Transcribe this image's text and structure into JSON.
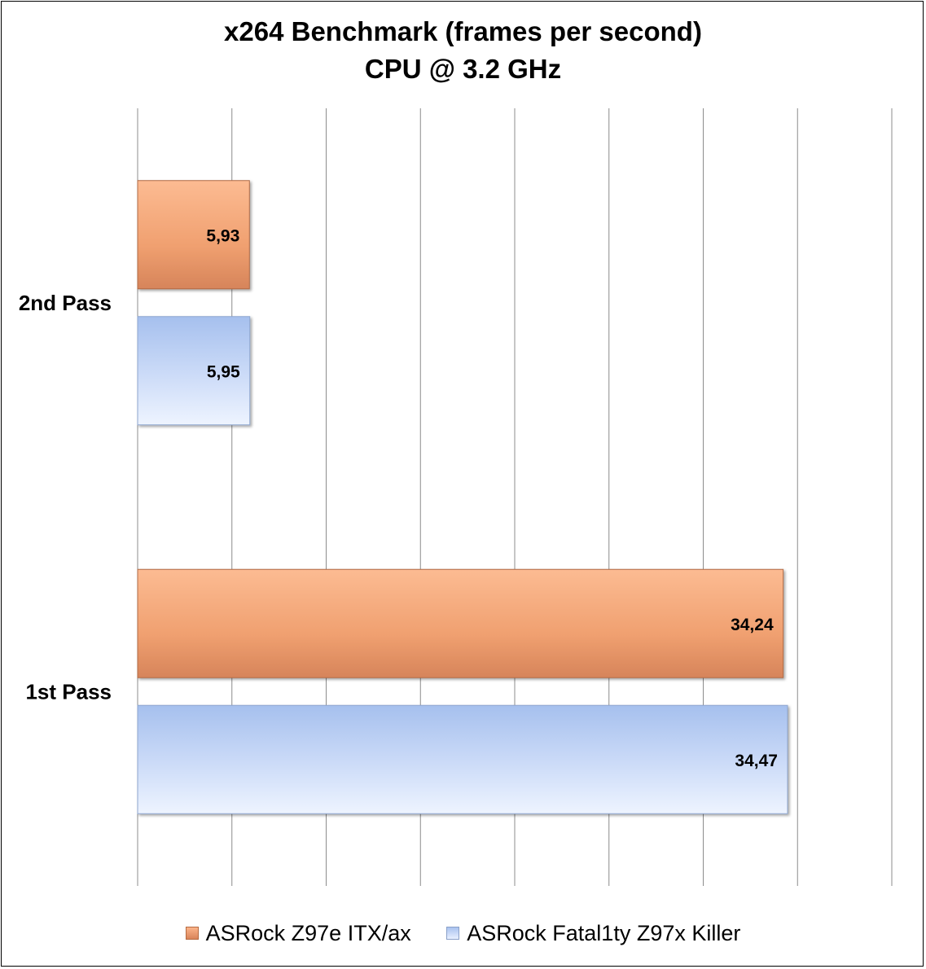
{
  "chart_data": {
    "type": "bar",
    "orientation": "horizontal",
    "title": "x264 Benchmark (frames per second)",
    "subtitle": "CPU @ 3.2 GHz",
    "categories": [
      "2nd Pass",
      "1st Pass"
    ],
    "series": [
      {
        "name": "ASRock Z97e ITX/ax",
        "values": [
          5.93,
          34.24
        ],
        "labels": [
          "5,93",
          "34,24"
        ],
        "color": "#f4a070"
      },
      {
        "name": "ASRock Fatal1ty Z97x Killer",
        "values": [
          5.95,
          34.47
        ],
        "labels": [
          "5,95",
          "34,47"
        ],
        "color": "#a9c2ef"
      }
    ],
    "xlim": [
      0,
      40
    ],
    "grid": "vertical",
    "tick_labels_visible": false,
    "legend": "bottom"
  }
}
